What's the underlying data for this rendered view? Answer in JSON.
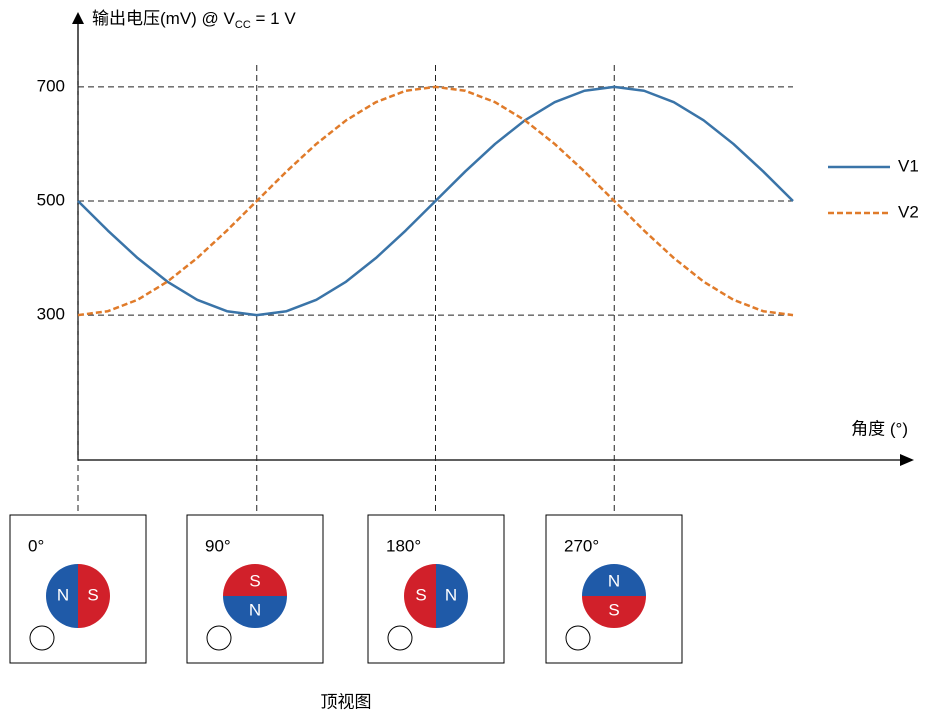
{
  "chart_data": {
    "type": "line",
    "y_label": {
      "main": "输出电压(mV) @ V",
      "sub": "CC",
      "tail": " = 1 V"
    },
    "x_label": "角度 (°)",
    "x": [
      0,
      15,
      30,
      45,
      60,
      75,
      90,
      105,
      120,
      135,
      150,
      165,
      180,
      195,
      210,
      225,
      240,
      255,
      270,
      285,
      300,
      315,
      330,
      345,
      360
    ],
    "series": [
      {
        "name": "V1",
        "color": "#3a74a8",
        "dashed": false,
        "values": [
          500,
          448.2,
          400,
          358.6,
          326.8,
          306.8,
          300,
          306.8,
          326.8,
          358.6,
          400,
          448.2,
          500,
          551.8,
          600,
          641.4,
          673.2,
          693.2,
          700,
          693.2,
          673.2,
          641.4,
          600,
          551.8,
          500
        ]
      },
      {
        "name": "V2",
        "color": "#e07b2a",
        "dashed": true,
        "values": [
          300,
          306.8,
          326.8,
          358.6,
          400,
          448.2,
          500,
          551.8,
          600,
          641.4,
          673.2,
          693.2,
          700,
          693.2,
          673.2,
          641.4,
          600,
          551.8,
          500,
          448.2,
          400,
          358.6,
          326.8,
          306.8,
          300
        ]
      }
    ],
    "xlim": [
      0,
      360
    ],
    "xticks": [
      0,
      90,
      180,
      270
    ],
    "ylim": [
      46,
      826
    ],
    "yticks": [
      300,
      500,
      700
    ],
    "grid": true,
    "legend": "right"
  },
  "magnets": {
    "pole_colors": {
      "N": "#1f5aa8",
      "S": "#d1202a"
    },
    "panels": [
      {
        "angle_label": "0°",
        "split": "left-right",
        "poles": [
          "N",
          "S"
        ]
      },
      {
        "angle_label": "90°",
        "split": "top-bottom",
        "poles": [
          "S",
          "N"
        ]
      },
      {
        "angle_label": "180°",
        "split": "left-right",
        "poles": [
          "S",
          "N"
        ]
      },
      {
        "angle_label": "270°",
        "split": "top-bottom",
        "poles": [
          "N",
          "S"
        ]
      }
    ],
    "caption": "顶视图"
  }
}
